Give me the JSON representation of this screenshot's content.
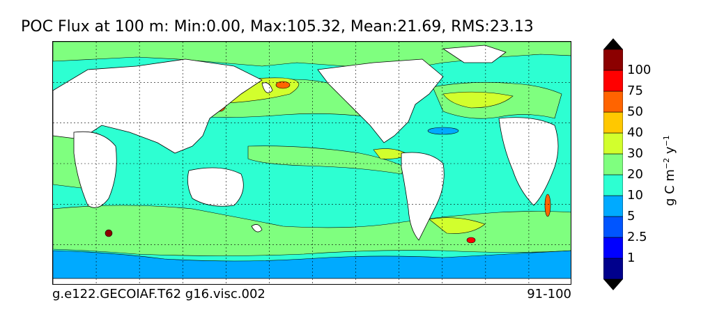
{
  "title": "POC Flux at 100 m: Min:0.00, Max:105.32, Mean:21.69, RMS:23.13",
  "footer": {
    "case_name": "g.e122.GECOIAF.T62 g16.visc.002",
    "years": "91-100"
  },
  "colorbar": {
    "unit_text": "g C m",
    "unit_exp1": "−2",
    "unit_mid": " y",
    "unit_exp2": "−1",
    "levels": [
      "1",
      "2.5",
      "5",
      "10",
      "20",
      "30",
      "40",
      "50",
      "75",
      "100"
    ],
    "colors": [
      "#00008c",
      "#0000ff",
      "#0055ff",
      "#00aaff",
      "#2dffd2",
      "#7fff7f",
      "#d2ff2d",
      "#ffc800",
      "#ff6400",
      "#ff0000",
      "#8c0000"
    ]
  },
  "map": {
    "land_color": "#ffffff",
    "grid": true
  }
}
